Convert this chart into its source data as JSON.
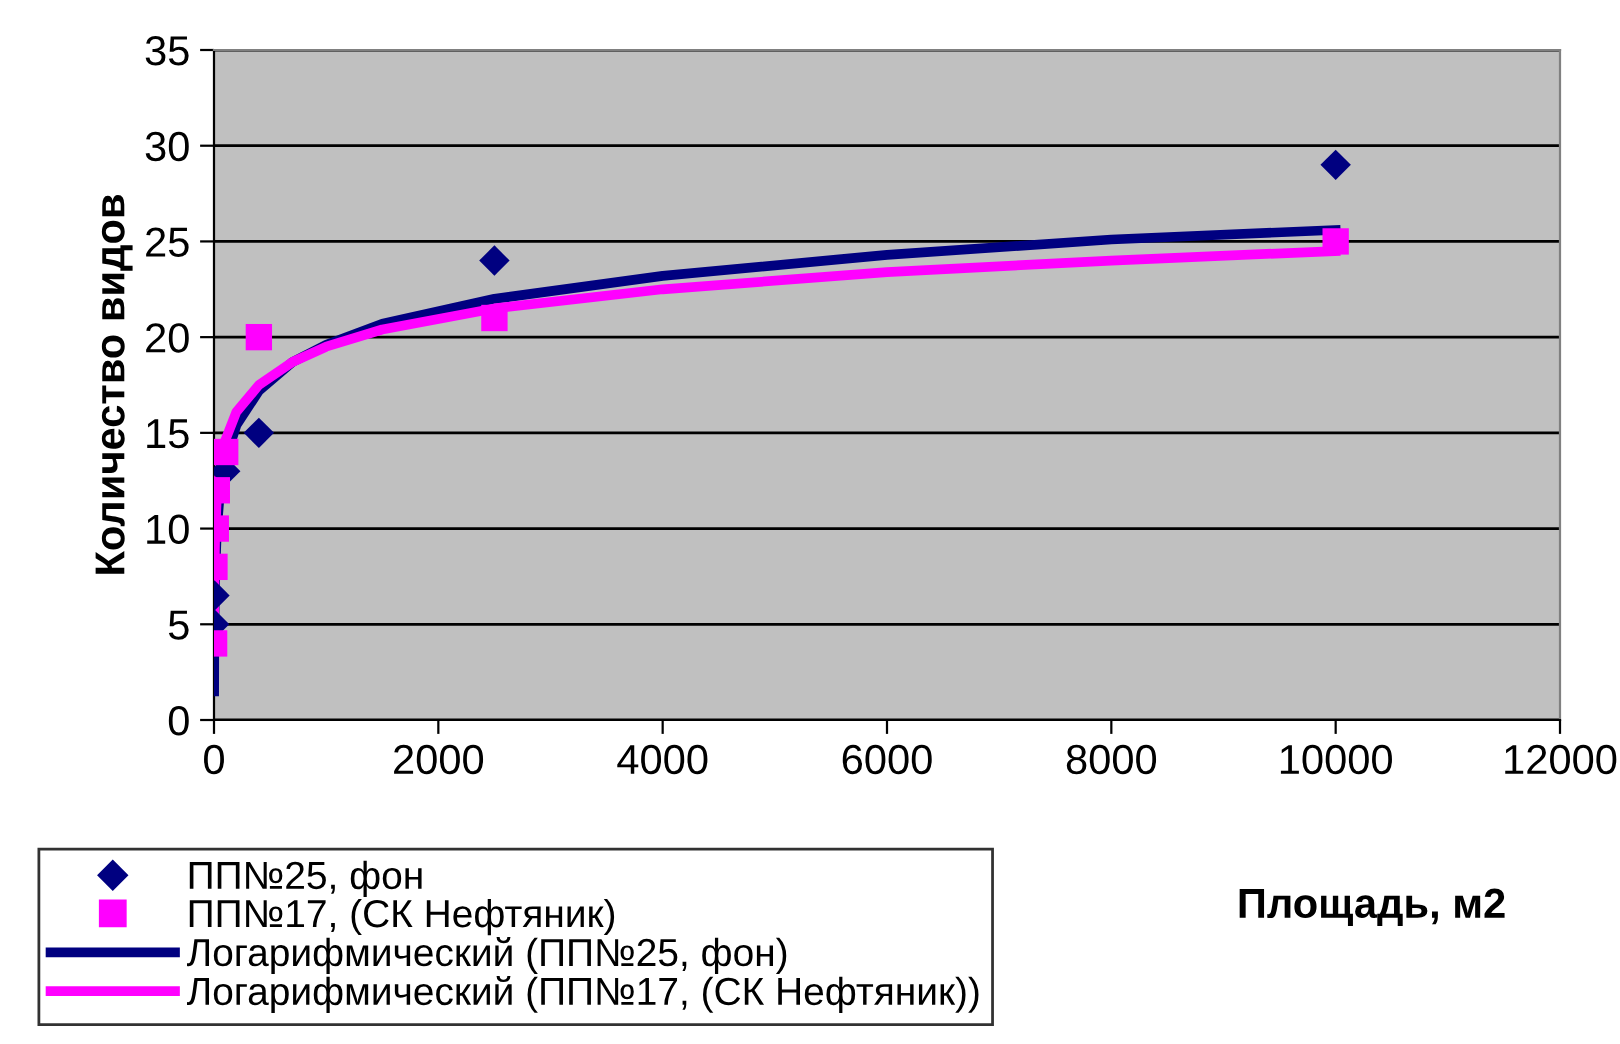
{
  "chart_data": {
    "type": "scatter",
    "xlabel": "Площадь, м2",
    "ylabel": "Количество видов",
    "xlim": [
      0,
      12000
    ],
    "xticks": [
      0,
      2000,
      4000,
      6000,
      8000,
      10000,
      12000
    ],
    "ylim": [
      0,
      35
    ],
    "yticks": [
      0,
      5,
      10,
      15,
      20,
      25,
      30,
      35
    ],
    "grid": "y",
    "legend": "bottom left",
    "series": [
      {
        "name": "ПП№25, фон",
        "marker": "diamond",
        "color": "#000080",
        "x": [
          1,
          4,
          16,
          100,
          400,
          2500,
          10000
        ],
        "values": [
          5,
          6.5,
          null,
          13,
          15,
          24,
          29
        ]
      },
      {
        "name": "ПП№17, (СК Нефтяник)",
        "marker": "square",
        "color": "#ff00ff",
        "x": [
          1,
          4,
          16,
          25,
          100,
          400,
          2500,
          10000
        ],
        "values": [
          4,
          8,
          10,
          12,
          14,
          20,
          21,
          25
        ]
      },
      {
        "name": "Логарифмический (ПП№25, фон)",
        "type": "line",
        "marker": "none",
        "color": "#000080",
        "x": [
          1,
          2,
          5,
          10,
          25,
          50,
          100,
          200,
          400,
          700,
          1000,
          1500,
          2500,
          4000,
          6000,
          8000,
          10000
        ],
        "values": [
          1.5,
          3.3,
          5.7,
          7.5,
          9.9,
          11.7,
          13.6,
          15.4,
          17.2,
          18.7,
          19.6,
          20.7,
          22.0,
          23.2,
          24.3,
          25.1,
          25.6
        ]
      },
      {
        "name": "Логарифмический (ПП№17, (СК Нефтяник))",
        "type": "line",
        "marker": "none",
        "color": "#ff00ff",
        "x": [
          1,
          2,
          5,
          10,
          25,
          50,
          100,
          200,
          400,
          700,
          1000,
          1500,
          2500,
          4000,
          6000,
          8000,
          10000
        ],
        "values": [
          4.6,
          6.1,
          8.1,
          9.6,
          11.6,
          13.0,
          14.6,
          16.1,
          17.5,
          18.7,
          19.5,
          20.4,
          21.5,
          22.5,
          23.4,
          24.0,
          24.5
        ]
      }
    ]
  }
}
